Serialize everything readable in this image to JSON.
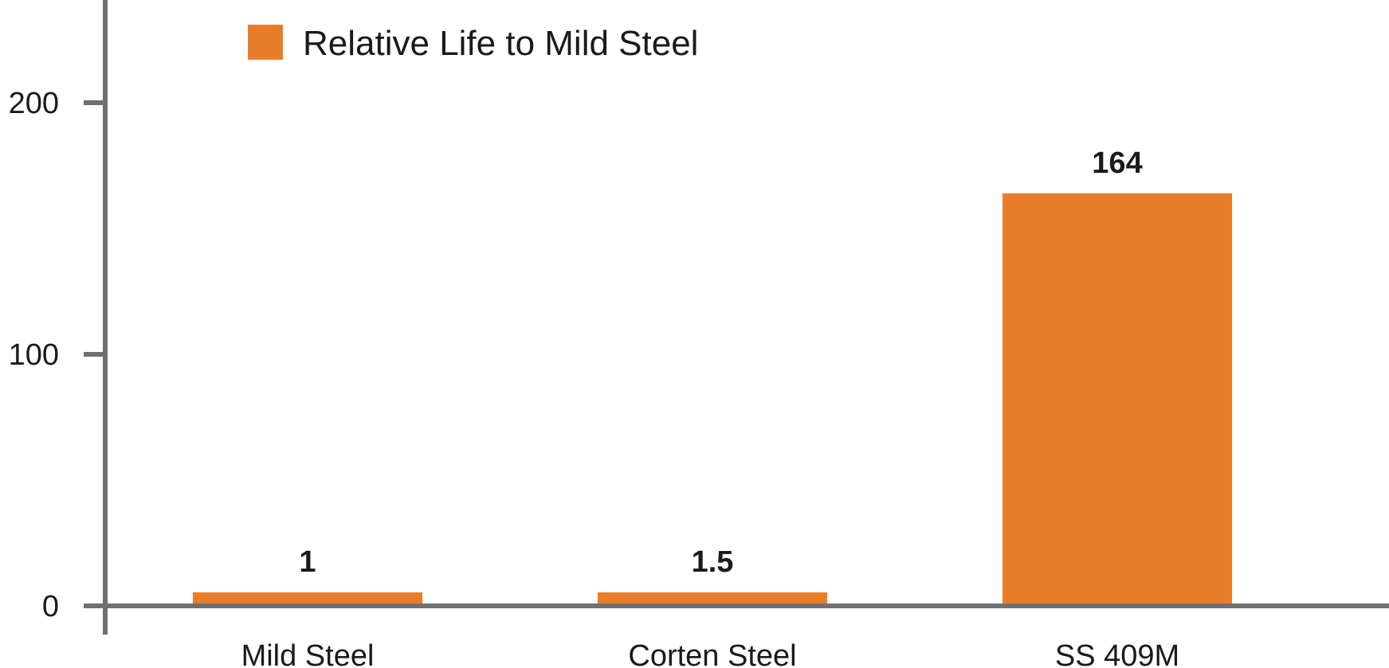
{
  "chart_data": {
    "type": "bar",
    "categories": [
      "Mild Steel",
      "Corten Steel",
      "SS 409M"
    ],
    "series": [
      {
        "name": "Relative Life to Mild Steel",
        "values": [
          1,
          1.5,
          164
        ],
        "labels": [
          "1",
          "1.5",
          "164"
        ],
        "color": "#E97E2A"
      }
    ],
    "yticks": [
      "0",
      "100",
      "200"
    ],
    "ylim": [
      -10,
      230
    ],
    "grid": false,
    "legend": "top-left",
    "axis_color": "#707070"
  }
}
